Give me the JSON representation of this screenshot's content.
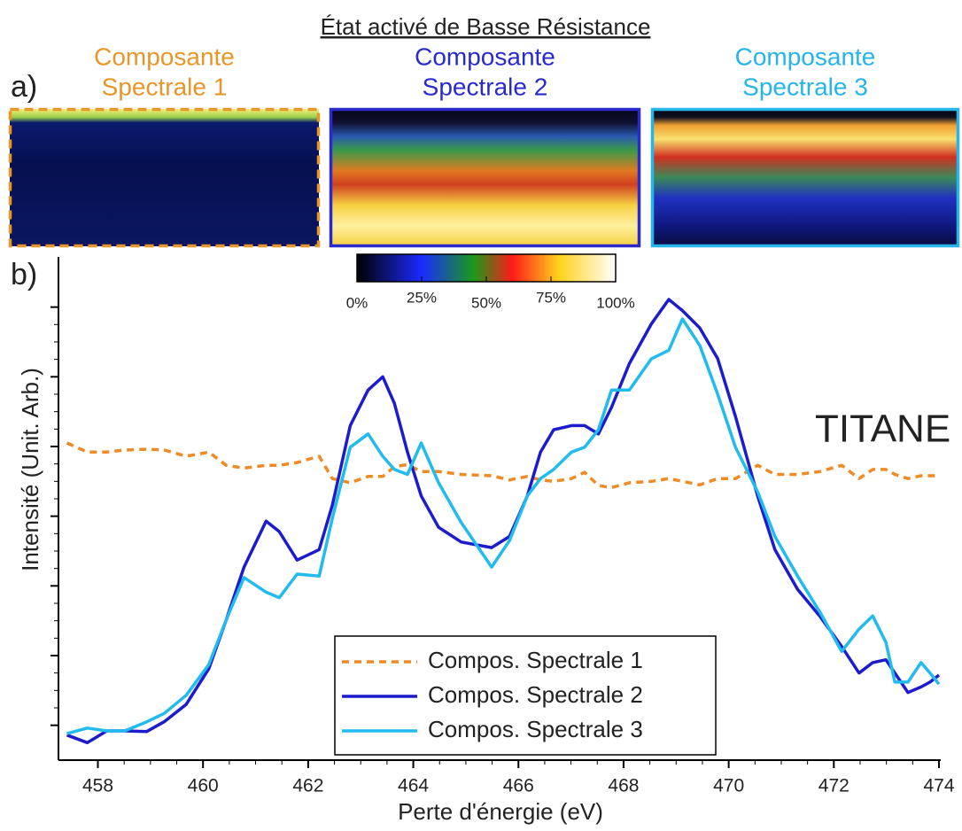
{
  "title": "État activé de Basse Résistance",
  "label_a": "a)",
  "label_b": "b)",
  "panels": [
    {
      "lines": [
        "Composante",
        "Spectrale 1"
      ],
      "color": "#e8962a"
    },
    {
      "lines": [
        "Composante",
        "Spectrale 2"
      ],
      "color": "#2a2acc"
    },
    {
      "lines": [
        "Composante",
        "Spectrale 3"
      ],
      "color": "#27b4e8"
    }
  ],
  "colorbar": {
    "ticks": [
      {
        "value": 0,
        "label": "0%"
      },
      {
        "value": 25,
        "label": "25%"
      },
      {
        "value": 50,
        "label": "50%"
      },
      {
        "value": 75,
        "label": "75%"
      },
      {
        "value": 100,
        "label": "100%"
      }
    ]
  },
  "chart_data": {
    "type": "line",
    "annotation": "TITANE",
    "xlabel": "Perte d'énergie (eV)",
    "ylabel": "Intensité (Unit. Arb.)",
    "xlim": [
      457.25,
      474
    ],
    "ylim": [
      0.5,
      7.72
    ],
    "xticks": [
      458,
      460,
      462,
      464,
      466,
      468,
      470,
      472,
      474
    ],
    "yticks": [
      1,
      2,
      3,
      4,
      5,
      6,
      7
    ],
    "legend": "lower center",
    "x": [
      457.41,
      457.8,
      458.17,
      458.51,
      458.93,
      459.26,
      459.68,
      460.11,
      460.44,
      460.78,
      461.2,
      461.45,
      461.79,
      462.21,
      462.46,
      462.8,
      463.14,
      463.42,
      463.64,
      463.89,
      464.15,
      464.48,
      464.91,
      465.49,
      465.83,
      466.17,
      466.42,
      466.67,
      467.01,
      467.26,
      467.52,
      467.77,
      468.11,
      468.53,
      468.86,
      469.12,
      469.45,
      469.79,
      470.13,
      470.55,
      470.88,
      471.31,
      471.73,
      472.15,
      472.48,
      472.74,
      472.99,
      473.16,
      473.41,
      473.66,
      473.83,
      474.0
    ],
    "series": [
      {
        "name": "Compos. Spectrale 1",
        "color": "#f08a24",
        "linestyle": "dashed",
        "values": [
          5.05,
          4.92,
          4.92,
          4.95,
          4.96,
          4.95,
          4.86,
          4.92,
          4.73,
          4.69,
          4.73,
          4.73,
          4.77,
          4.86,
          4.54,
          4.48,
          4.57,
          4.57,
          4.71,
          4.74,
          4.64,
          4.64,
          4.6,
          4.58,
          4.52,
          4.57,
          4.52,
          4.5,
          4.54,
          4.63,
          4.44,
          4.41,
          4.48,
          4.5,
          4.54,
          4.5,
          4.45,
          4.54,
          4.54,
          4.73,
          4.6,
          4.6,
          4.64,
          4.73,
          4.54,
          4.67,
          4.67,
          4.6,
          4.54,
          4.58,
          4.58,
          4.58
        ]
      },
      {
        "name": "Compos. Spectrale 2",
        "color": "#1c1ccc",
        "linestyle": "solid",
        "values": [
          0.86,
          0.75,
          0.92,
          0.92,
          0.91,
          1.05,
          1.3,
          1.81,
          2.51,
          3.27,
          3.93,
          3.78,
          3.37,
          3.52,
          4.16,
          5.3,
          5.81,
          6.0,
          5.62,
          4.92,
          4.29,
          3.84,
          3.63,
          3.55,
          3.71,
          4.29,
          4.92,
          5.24,
          5.3,
          5.3,
          5.18,
          5.56,
          6.19,
          6.76,
          7.11,
          6.95,
          6.7,
          6.26,
          5.43,
          4.29,
          3.52,
          2.95,
          2.57,
          2.13,
          1.75,
          1.9,
          1.94,
          1.75,
          1.47,
          1.55,
          1.62,
          1.72
        ]
      },
      {
        "name": "Compos. Spectrale 3",
        "color": "#22bbee",
        "linestyle": "solid",
        "values": [
          0.88,
          0.96,
          0.92,
          0.92,
          1.05,
          1.17,
          1.43,
          1.87,
          2.51,
          3.12,
          2.91,
          2.83,
          3.17,
          3.14,
          3.97,
          4.99,
          5.18,
          4.86,
          4.67,
          4.6,
          5.05,
          4.48,
          3.91,
          3.27,
          3.65,
          4.29,
          4.54,
          4.67,
          4.92,
          4.99,
          5.24,
          5.81,
          5.81,
          6.26,
          6.38,
          6.83,
          6.45,
          5.75,
          4.99,
          4.35,
          3.71,
          3.14,
          2.63,
          2.06,
          2.38,
          2.57,
          2.19,
          1.62,
          1.62,
          1.9,
          1.75,
          1.59
        ]
      }
    ]
  }
}
